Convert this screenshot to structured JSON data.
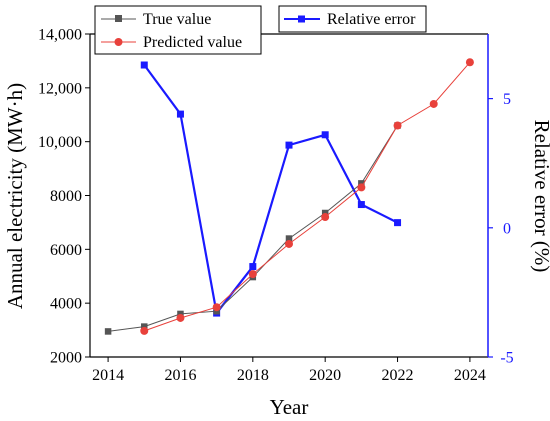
{
  "chart_data": {
    "type": "line",
    "xlabel": "Year",
    "ylabel": "Annual electricity (MW·h)",
    "y2label": "Relative error (%)",
    "xlim": [
      2013.5,
      2024.5
    ],
    "ylim": [
      2000,
      14000
    ],
    "y2lim": [
      -5,
      7.5
    ],
    "xticks": [
      "2014",
      "2016",
      "2018",
      "2020",
      "2022",
      "2024"
    ],
    "yticks": [
      "2000",
      "4000",
      "6000",
      "8000",
      "10,000",
      "12,000",
      "14,000"
    ],
    "y2ticks": [
      "-5",
      "0",
      "5"
    ],
    "series": [
      {
        "name": "True value",
        "axis": "left",
        "color": "#555555",
        "marker": "square",
        "x": [
          2014,
          2015,
          2016,
          2017,
          2018,
          2019,
          2020,
          2021,
          2022
        ],
        "values": [
          2950,
          3130,
          3600,
          3700,
          4970,
          6400,
          7350,
          8450,
          10600
        ]
      },
      {
        "name": "Predicted value",
        "axis": "left",
        "color": "#e8413b",
        "marker": "circle",
        "x": [
          2015,
          2016,
          2017,
          2018,
          2019,
          2020,
          2021,
          2022,
          2023,
          2024
        ],
        "values": [
          2970,
          3450,
          3850,
          5080,
          6200,
          7200,
          8300,
          10600,
          11400,
          12950
        ]
      },
      {
        "name": "Relative error",
        "axis": "right",
        "color": "#1a1aff",
        "marker": "square",
        "x": [
          2015,
          2016,
          2017,
          2018,
          2019,
          2020,
          2021,
          2022
        ],
        "values": [
          6.3,
          4.4,
          -3.3,
          -1.5,
          3.2,
          3.6,
          0.9,
          0.2
        ]
      }
    ],
    "legend": [
      "top-left",
      "top-right"
    ]
  }
}
